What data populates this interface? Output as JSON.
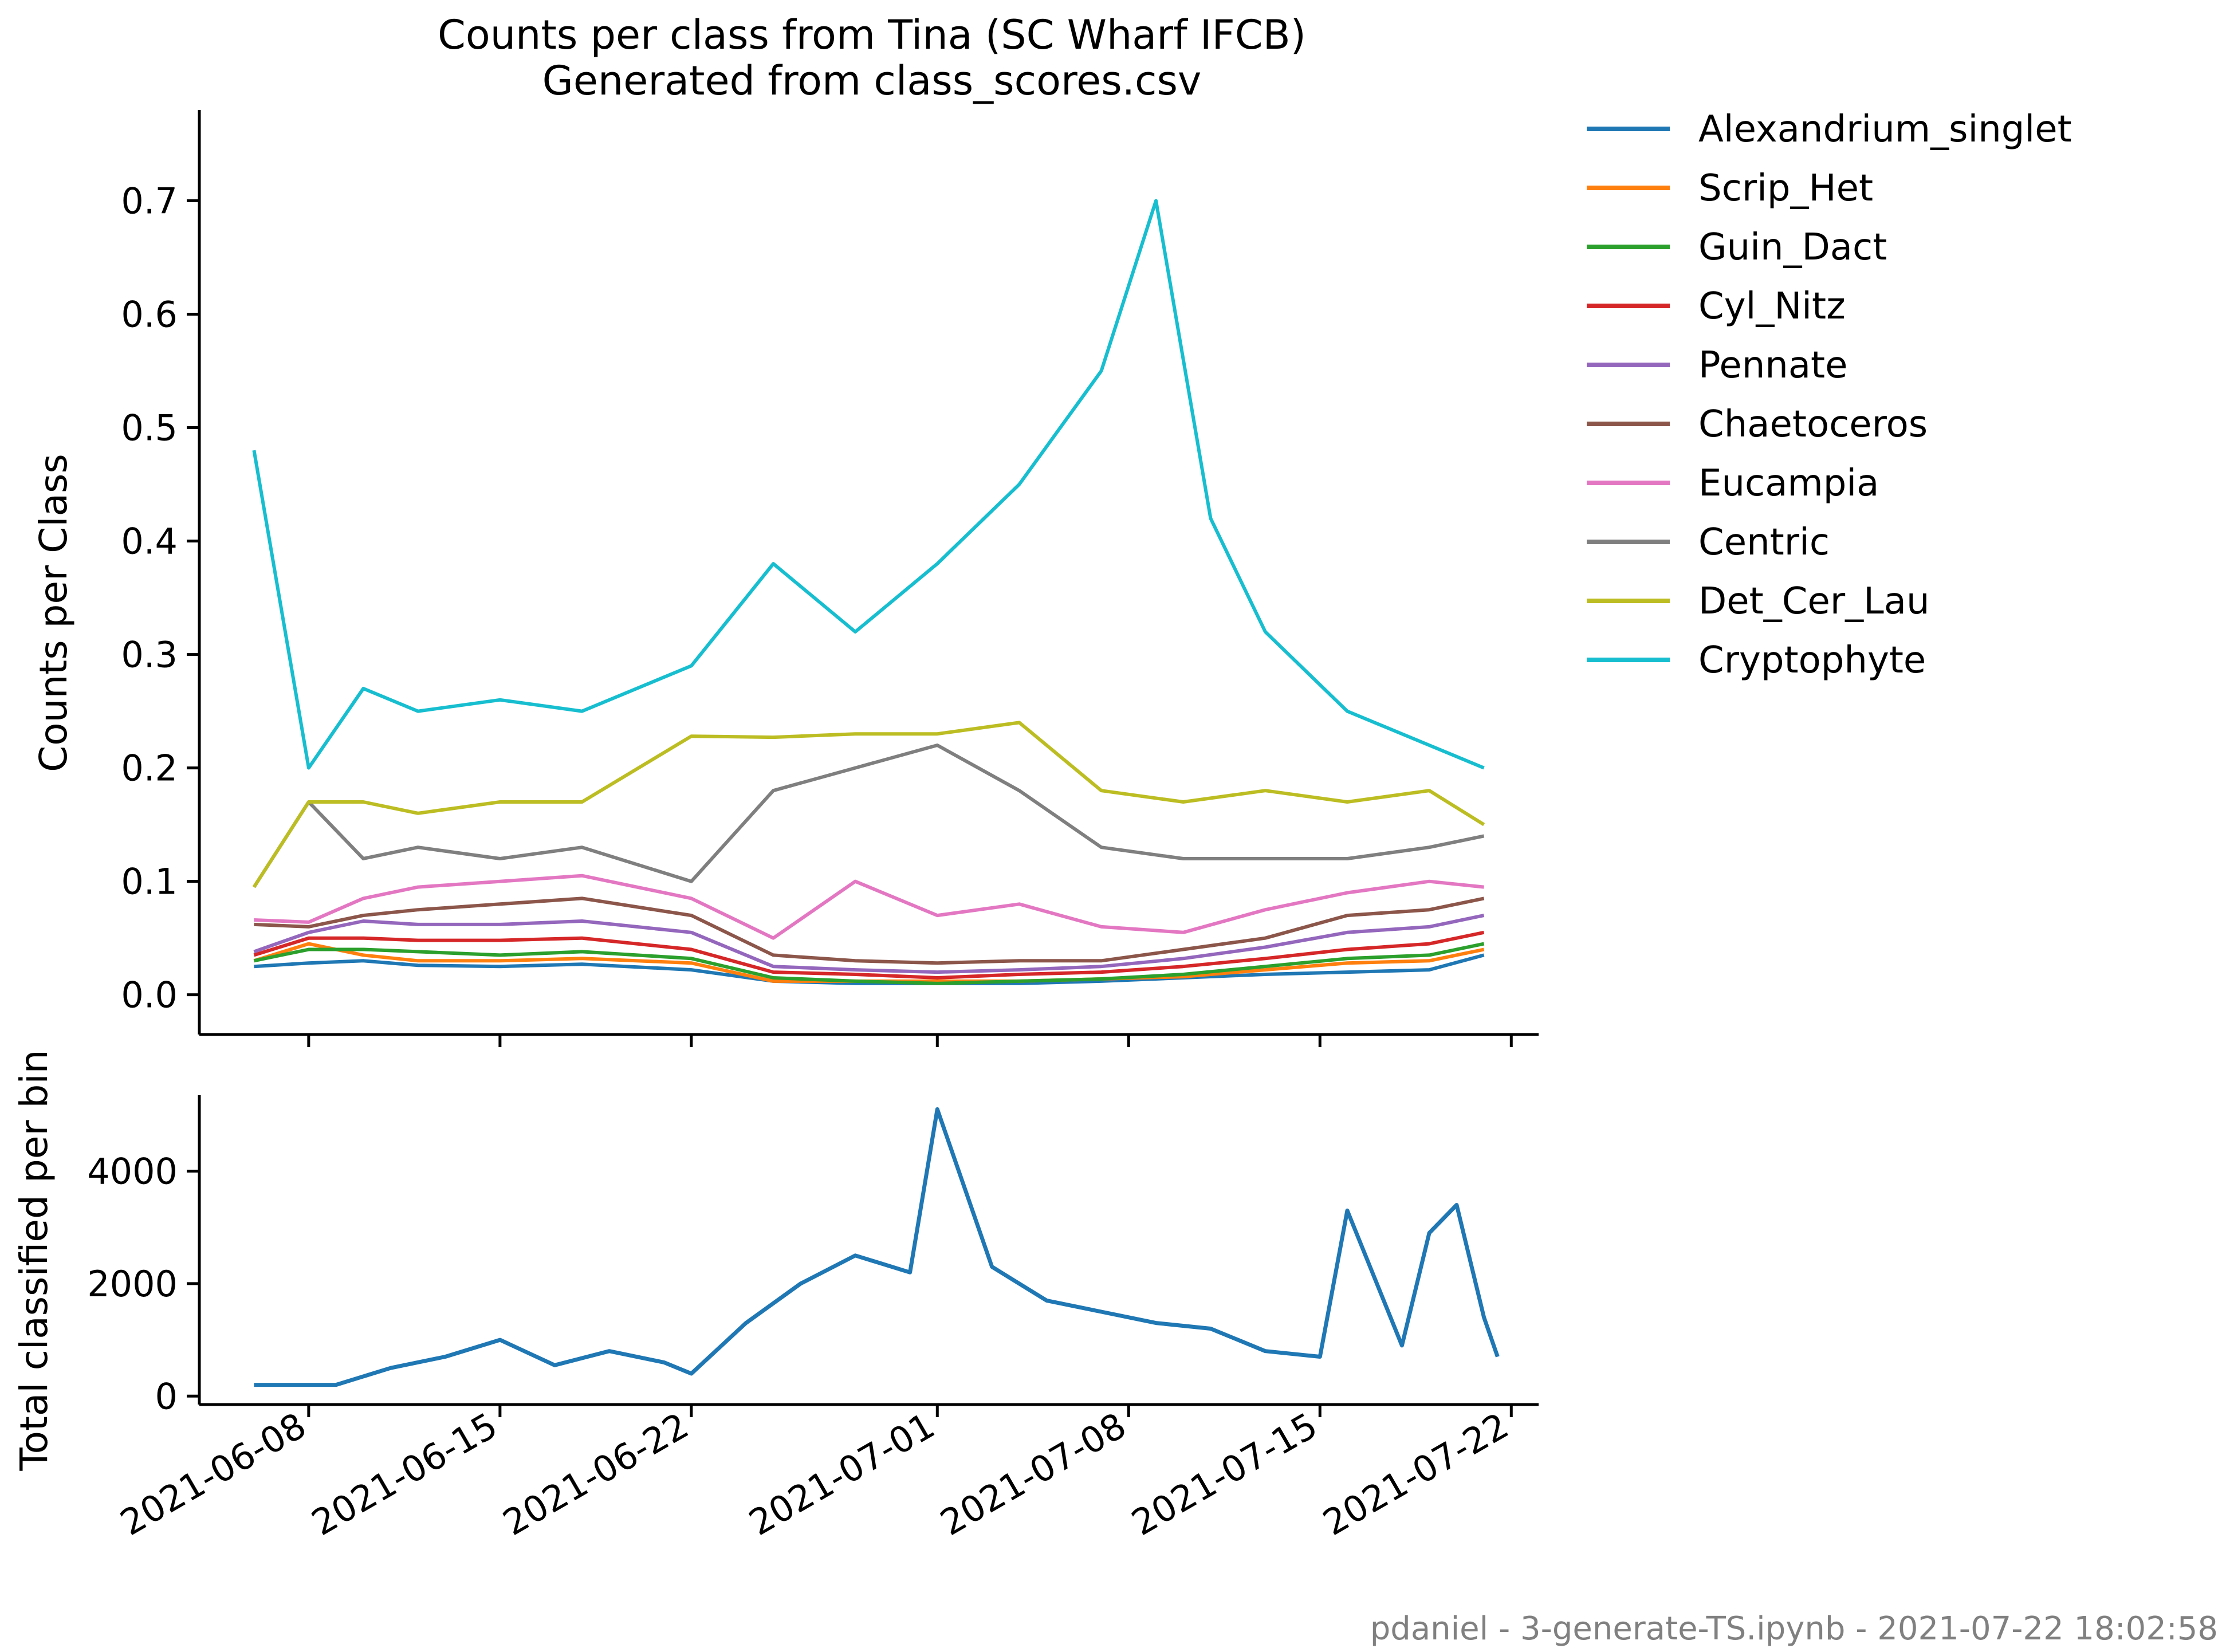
{
  "figure": {
    "title_line1": "Counts per class from Tina (SC Wharf IFCB)",
    "title_line2": "Generated from class_scores.csv",
    "footer": "pdaniel - 3-generate-TS.ipynb - 2021-07-22 18:02:58"
  },
  "chart_data": [
    {
      "type": "line",
      "ylabel": "Counts per Class",
      "xlim": [
        "2021-06-04",
        "2021-07-23"
      ],
      "ylim": [
        -0.035,
        0.78
      ],
      "yticks": [
        0.0,
        0.1,
        0.2,
        0.3,
        0.4,
        0.5,
        0.6,
        0.7
      ],
      "ytick_labels": [
        "0.0",
        "0.1",
        "0.2",
        "0.3",
        "0.4",
        "0.5",
        "0.6",
        "0.7"
      ],
      "xticks": [
        "2021-06-08",
        "2021-06-15",
        "2021-06-22",
        "2021-07-01",
        "2021-07-08",
        "2021-07-15",
        "2021-07-22"
      ],
      "grid": false,
      "legend_position": "outside upper right",
      "series": [
        {
          "name": "Alexandrium_singlet",
          "color": "#1f77b4",
          "points": [
            [
              "2021-06-06",
              0.025
            ],
            [
              "2021-06-08",
              0.028
            ],
            [
              "2021-06-10",
              0.03
            ],
            [
              "2021-06-12",
              0.026
            ],
            [
              "2021-06-15",
              0.025
            ],
            [
              "2021-06-18",
              0.027
            ],
            [
              "2021-06-22",
              0.022
            ],
            [
              "2021-06-25",
              0.012
            ],
            [
              "2021-06-28",
              0.01
            ],
            [
              "2021-07-01",
              0.01
            ],
            [
              "2021-07-04",
              0.01
            ],
            [
              "2021-07-07",
              0.012
            ],
            [
              "2021-07-10",
              0.015
            ],
            [
              "2021-07-13",
              0.018
            ],
            [
              "2021-07-16",
              0.02
            ],
            [
              "2021-07-19",
              0.022
            ],
            [
              "2021-07-21",
              0.035
            ]
          ]
        },
        {
          "name": "Scrip_Het",
          "color": "#ff7f0e",
          "points": [
            [
              "2021-06-06",
              0.03
            ],
            [
              "2021-06-08",
              0.045
            ],
            [
              "2021-06-10",
              0.035
            ],
            [
              "2021-06-12",
              0.03
            ],
            [
              "2021-06-15",
              0.03
            ],
            [
              "2021-06-18",
              0.032
            ],
            [
              "2021-06-22",
              0.028
            ],
            [
              "2021-06-25",
              0.012
            ],
            [
              "2021-06-28",
              0.012
            ],
            [
              "2021-07-01",
              0.012
            ],
            [
              "2021-07-04",
              0.012
            ],
            [
              "2021-07-07",
              0.014
            ],
            [
              "2021-07-10",
              0.016
            ],
            [
              "2021-07-13",
              0.022
            ],
            [
              "2021-07-16",
              0.028
            ],
            [
              "2021-07-19",
              0.03
            ],
            [
              "2021-07-21",
              0.04
            ]
          ]
        },
        {
          "name": "Guin_Dact",
          "color": "#2ca02c",
          "points": [
            [
              "2021-06-06",
              0.03
            ],
            [
              "2021-06-08",
              0.04
            ],
            [
              "2021-06-10",
              0.04
            ],
            [
              "2021-06-12",
              0.038
            ],
            [
              "2021-06-15",
              0.035
            ],
            [
              "2021-06-18",
              0.038
            ],
            [
              "2021-06-22",
              0.032
            ],
            [
              "2021-06-25",
              0.015
            ],
            [
              "2021-06-28",
              0.012
            ],
            [
              "2021-07-01",
              0.01
            ],
            [
              "2021-07-04",
              0.012
            ],
            [
              "2021-07-07",
              0.014
            ],
            [
              "2021-07-10",
              0.018
            ],
            [
              "2021-07-13",
              0.025
            ],
            [
              "2021-07-16",
              0.032
            ],
            [
              "2021-07-19",
              0.035
            ],
            [
              "2021-07-21",
              0.045
            ]
          ]
        },
        {
          "name": "Cyl_Nitz",
          "color": "#d62728",
          "points": [
            [
              "2021-06-06",
              0.035
            ],
            [
              "2021-06-08",
              0.05
            ],
            [
              "2021-06-10",
              0.05
            ],
            [
              "2021-06-12",
              0.048
            ],
            [
              "2021-06-15",
              0.048
            ],
            [
              "2021-06-18",
              0.05
            ],
            [
              "2021-06-22",
              0.04
            ],
            [
              "2021-06-25",
              0.02
            ],
            [
              "2021-06-28",
              0.018
            ],
            [
              "2021-07-01",
              0.015
            ],
            [
              "2021-07-04",
              0.018
            ],
            [
              "2021-07-07",
              0.02
            ],
            [
              "2021-07-10",
              0.025
            ],
            [
              "2021-07-13",
              0.032
            ],
            [
              "2021-07-16",
              0.04
            ],
            [
              "2021-07-19",
              0.045
            ],
            [
              "2021-07-21",
              0.055
            ]
          ]
        },
        {
          "name": "Pennate",
          "color": "#9467bd",
          "points": [
            [
              "2021-06-06",
              0.038
            ],
            [
              "2021-06-08",
              0.055
            ],
            [
              "2021-06-10",
              0.065
            ],
            [
              "2021-06-12",
              0.062
            ],
            [
              "2021-06-15",
              0.062
            ],
            [
              "2021-06-18",
              0.065
            ],
            [
              "2021-06-22",
              0.055
            ],
            [
              "2021-06-25",
              0.025
            ],
            [
              "2021-06-28",
              0.022
            ],
            [
              "2021-07-01",
              0.02
            ],
            [
              "2021-07-04",
              0.022
            ],
            [
              "2021-07-07",
              0.025
            ],
            [
              "2021-07-10",
              0.032
            ],
            [
              "2021-07-13",
              0.042
            ],
            [
              "2021-07-16",
              0.055
            ],
            [
              "2021-07-19",
              0.06
            ],
            [
              "2021-07-21",
              0.07
            ]
          ]
        },
        {
          "name": "Chaetoceros",
          "color": "#8c564b",
          "points": [
            [
              "2021-06-06",
              0.062
            ],
            [
              "2021-06-08",
              0.06
            ],
            [
              "2021-06-10",
              0.07
            ],
            [
              "2021-06-12",
              0.075
            ],
            [
              "2021-06-15",
              0.08
            ],
            [
              "2021-06-18",
              0.085
            ],
            [
              "2021-06-22",
              0.07
            ],
            [
              "2021-06-25",
              0.035
            ],
            [
              "2021-06-28",
              0.03
            ],
            [
              "2021-07-01",
              0.028
            ],
            [
              "2021-07-04",
              0.03
            ],
            [
              "2021-07-07",
              0.03
            ],
            [
              "2021-07-10",
              0.04
            ],
            [
              "2021-07-13",
              0.05
            ],
            [
              "2021-07-16",
              0.07
            ],
            [
              "2021-07-19",
              0.075
            ],
            [
              "2021-07-21",
              0.085
            ]
          ]
        },
        {
          "name": "Eucampia",
          "color": "#e377c2",
          "points": [
            [
              "2021-06-06",
              0.066
            ],
            [
              "2021-06-08",
              0.064
            ],
            [
              "2021-06-10",
              0.085
            ],
            [
              "2021-06-12",
              0.095
            ],
            [
              "2021-06-15",
              0.1
            ],
            [
              "2021-06-18",
              0.105
            ],
            [
              "2021-06-22",
              0.085
            ],
            [
              "2021-06-25",
              0.05
            ],
            [
              "2021-06-28",
              0.1
            ],
            [
              "2021-07-01",
              0.07
            ],
            [
              "2021-07-04",
              0.08
            ],
            [
              "2021-07-07",
              0.06
            ],
            [
              "2021-07-10",
              0.055
            ],
            [
              "2021-07-13",
              0.075
            ],
            [
              "2021-07-16",
              0.09
            ],
            [
              "2021-07-19",
              0.1
            ],
            [
              "2021-07-21",
              0.095
            ]
          ]
        },
        {
          "name": "Centric",
          "color": "#7f7f7f",
          "points": [
            [
              "2021-06-06",
              0.095
            ],
            [
              "2021-06-08",
              0.17
            ],
            [
              "2021-06-10",
              0.12
            ],
            [
              "2021-06-12",
              0.13
            ],
            [
              "2021-06-15",
              0.12
            ],
            [
              "2021-06-18",
              0.13
            ],
            [
              "2021-06-22",
              0.1
            ],
            [
              "2021-06-25",
              0.18
            ],
            [
              "2021-06-28",
              0.2
            ],
            [
              "2021-07-01",
              0.22
            ],
            [
              "2021-07-04",
              0.18
            ],
            [
              "2021-07-07",
              0.13
            ],
            [
              "2021-07-10",
              0.12
            ],
            [
              "2021-07-13",
              0.12
            ],
            [
              "2021-07-16",
              0.12
            ],
            [
              "2021-07-19",
              0.13
            ],
            [
              "2021-07-21",
              0.14
            ]
          ]
        },
        {
          "name": "Det_Cer_Lau",
          "color": "#bcbd22",
          "points": [
            [
              "2021-06-06",
              0.095
            ],
            [
              "2021-06-08",
              0.17
            ],
            [
              "2021-06-10",
              0.17
            ],
            [
              "2021-06-12",
              0.16
            ],
            [
              "2021-06-15",
              0.17
            ],
            [
              "2021-06-18",
              0.17
            ],
            [
              "2021-06-22",
              0.228
            ],
            [
              "2021-06-25",
              0.227
            ],
            [
              "2021-06-28",
              0.23
            ],
            [
              "2021-07-01",
              0.23
            ],
            [
              "2021-07-04",
              0.24
            ],
            [
              "2021-07-07",
              0.18
            ],
            [
              "2021-07-10",
              0.17
            ],
            [
              "2021-07-13",
              0.18
            ],
            [
              "2021-07-16",
              0.17
            ],
            [
              "2021-07-19",
              0.18
            ],
            [
              "2021-07-21",
              0.15
            ]
          ]
        },
        {
          "name": "Cryptophyte",
          "color": "#17becf",
          "points": [
            [
              "2021-06-06",
              0.48
            ],
            [
              "2021-06-08",
              0.2
            ],
            [
              "2021-06-10",
              0.27
            ],
            [
              "2021-06-12",
              0.25
            ],
            [
              "2021-06-15",
              0.26
            ],
            [
              "2021-06-18",
              0.25
            ],
            [
              "2021-06-22",
              0.29
            ],
            [
              "2021-06-25",
              0.38
            ],
            [
              "2021-06-28",
              0.32
            ],
            [
              "2021-07-01",
              0.38
            ],
            [
              "2021-07-04",
              0.45
            ],
            [
              "2021-07-07",
              0.55
            ],
            [
              "2021-07-09",
              0.7
            ],
            [
              "2021-07-11",
              0.42
            ],
            [
              "2021-07-13",
              0.32
            ],
            [
              "2021-07-16",
              0.25
            ],
            [
              "2021-07-19",
              0.22
            ],
            [
              "2021-07-21",
              0.2
            ]
          ]
        }
      ]
    },
    {
      "type": "line",
      "ylabel": "Total classified per bin",
      "xlim": [
        "2021-06-04",
        "2021-07-23"
      ],
      "ylim": [
        -150,
        5350
      ],
      "yticks": [
        0,
        2000,
        4000
      ],
      "ytick_labels": [
        "0",
        "2000",
        "4000"
      ],
      "xticks": [
        "2021-06-08",
        "2021-06-15",
        "2021-06-22",
        "2021-07-01",
        "2021-07-08",
        "2021-07-15",
        "2021-07-22"
      ],
      "xtick_labels": [
        "2021-06-08",
        "2021-06-15",
        "2021-06-22",
        "2021-07-01",
        "2021-07-08",
        "2021-07-15",
        "2021-07-22"
      ],
      "grid": false,
      "series": [
        {
          "name": "",
          "color": "#1f77b4",
          "points": [
            [
              "2021-06-06",
              200
            ],
            [
              "2021-06-09",
              200
            ],
            [
              "2021-06-11",
              500
            ],
            [
              "2021-06-13",
              700
            ],
            [
              "2021-06-15",
              1000
            ],
            [
              "2021-06-17",
              550
            ],
            [
              "2021-06-19",
              800
            ],
            [
              "2021-06-21",
              600
            ],
            [
              "2021-06-22",
              400
            ],
            [
              "2021-06-24",
              1300
            ],
            [
              "2021-06-26",
              2000
            ],
            [
              "2021-06-28",
              2500
            ],
            [
              "2021-06-30",
              2200
            ],
            [
              "2021-07-01",
              5100
            ],
            [
              "2021-07-03",
              2300
            ],
            [
              "2021-07-05",
              1700
            ],
            [
              "2021-07-07",
              1500
            ],
            [
              "2021-07-09",
              1300
            ],
            [
              "2021-07-11",
              1200
            ],
            [
              "2021-07-13",
              800
            ],
            [
              "2021-07-15",
              700
            ],
            [
              "2021-07-16",
              3300
            ],
            [
              "2021-07-18",
              900
            ],
            [
              "2021-07-19",
              2900
            ],
            [
              "2021-07-20",
              3400
            ],
            [
              "2021-07-21",
              1400
            ],
            [
              "2021-07-21T12",
              700
            ]
          ]
        }
      ]
    }
  ]
}
